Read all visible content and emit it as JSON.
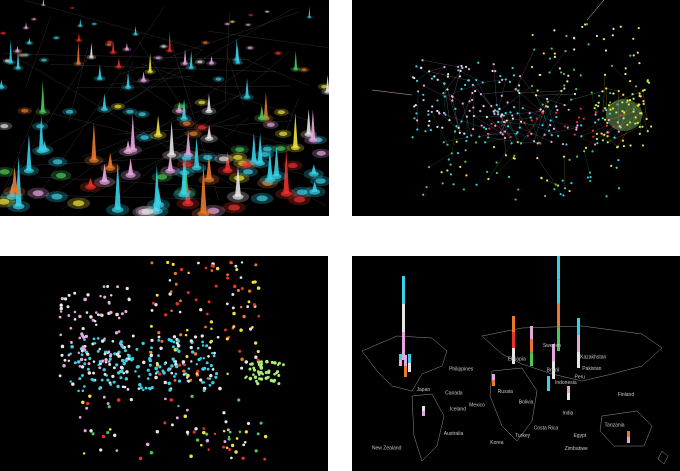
{
  "panels": [
    {
      "id": "tl",
      "name": "3d-network-glyph-view",
      "view": "perspective-3d"
    },
    {
      "id": "tr",
      "name": "2d-force-directed-graph",
      "view": "graph-layout"
    },
    {
      "id": "bl",
      "name": "point-cloud-cluster-view",
      "view": "scatter-cloud"
    },
    {
      "id": "br",
      "name": "world-map-bar-view",
      "view": "geo-bars"
    }
  ],
  "map_labels": [
    "Iceland",
    "Sweden",
    "Finland",
    "Russia",
    "Canada",
    "Kazakhstan",
    "Turkey",
    "Brazil",
    "Peru",
    "Tanzania",
    "Australia",
    "New Zealand",
    "Philippines",
    "Indonesia",
    "Pakistan",
    "India",
    "Korea",
    "Japan",
    "Egypt",
    "Mexico",
    "Zimbabwe",
    "Ethiopia",
    "Costa Rica",
    "Bolivia"
  ],
  "colors": {
    "background": "#000000",
    "cyan": "#36d2e8",
    "pink": "#e8a6e0",
    "yellow": "#f2e23a",
    "red": "#e8322c",
    "orange": "#e8792c",
    "green": "#4cc85a",
    "white": "#e6e6e6",
    "lightgreen": "#a8f07a"
  }
}
